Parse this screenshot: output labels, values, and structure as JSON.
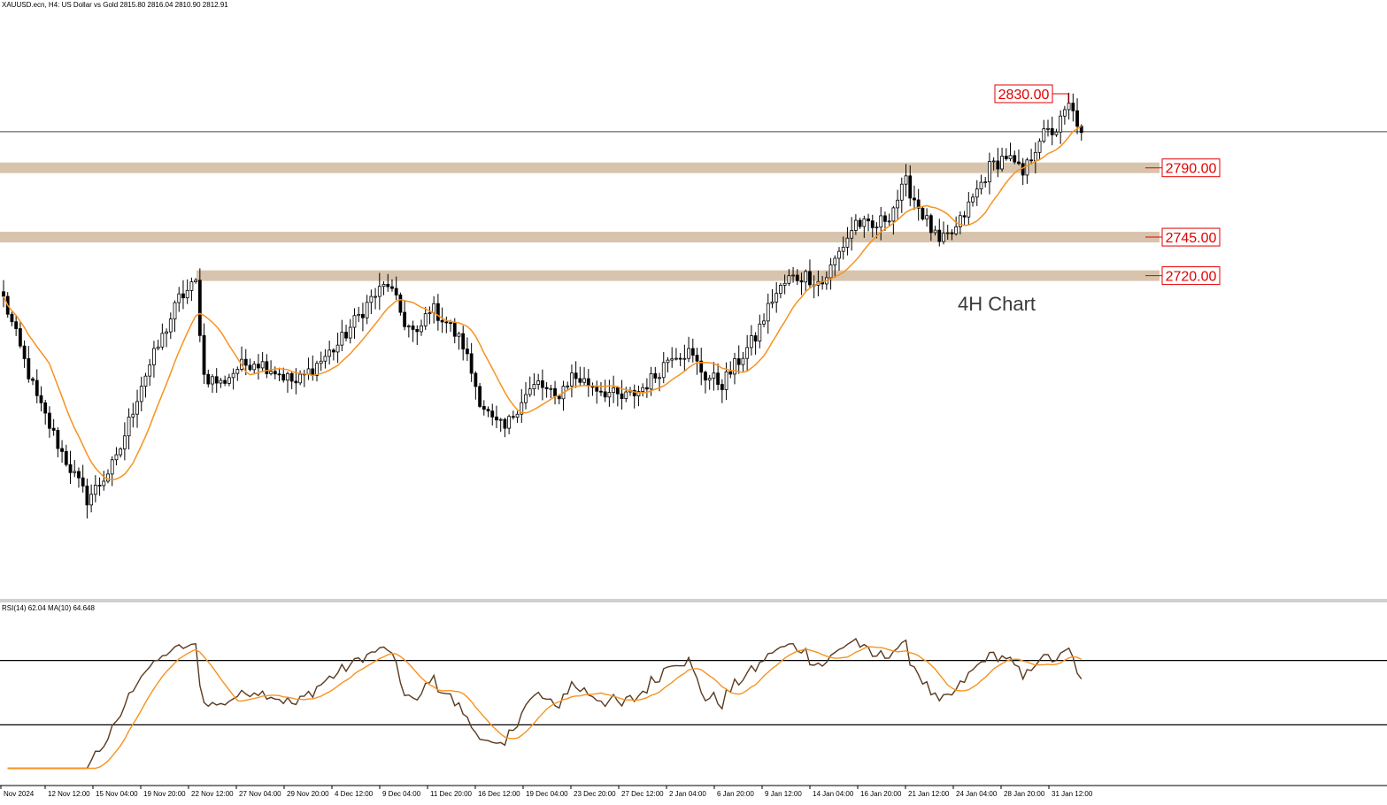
{
  "header": {
    "symbol_text": "XAUUSD.ecn, H4:  US Dollar vs Gold  2815.80 2816.04 2810.90 2812.91"
  },
  "annotation": {
    "text": "4H Chart"
  },
  "colors": {
    "background": "#ffffff",
    "candle": "#000000",
    "ma_line": "#f7931e",
    "zone_fill": "#d8c4ac",
    "label_red": "#e00000",
    "rsi_line": "#5a3a20",
    "rsi_ma_line": "#f7931e",
    "grid_line": "#000000"
  },
  "chart_data": [
    {
      "type": "candlestick",
      "name": "XAUUSD.ecn H4",
      "indicator": "moving average",
      "ylim": [
        2540,
        2880
      ],
      "price_levels": [
        {
          "label": "2830.00",
          "value": 2830,
          "style": "marker"
        },
        {
          "label": "2790.00",
          "value": 2790,
          "style": "zone"
        },
        {
          "label": "2745.00",
          "value": 2745,
          "style": "zone"
        },
        {
          "label": "2720.00",
          "value": 2720,
          "style": "zone"
        }
      ],
      "current_price": 2812.91,
      "x_tick_labels": [
        "Nov 2024",
        "12 Nov 12:00",
        "15 Nov 04:00",
        "19 Nov 20:00",
        "22 Nov 12:00",
        "27 Nov 04:00",
        "29 Nov 20:00",
        "4 Dec 12:00",
        "9 Dec 04:00",
        "11 Dec 20:00",
        "16 Dec 12:00",
        "19 Dec 04:00",
        "23 Dec 20:00",
        "27 Dec 12:00",
        "2 Jan 04:00",
        "6 Jan 20:00",
        "9 Jan 12:00",
        "14 Jan 04:00",
        "16 Jan 20:00",
        "21 Jan 12:00",
        "24 Jan 04:00",
        "28 Jan 20:00",
        "31 Jan 12:00"
      ],
      "price_path": [
        [
          0,
          2705
        ],
        [
          8,
          2640
        ],
        [
          14,
          2605
        ],
        [
          20,
          2575
        ],
        [
          23,
          2585
        ],
        [
          27,
          2600
        ],
        [
          33,
          2650
        ],
        [
          38,
          2680
        ],
        [
          42,
          2705
        ],
        [
          46,
          2715
        ],
        [
          48,
          2655
        ],
        [
          52,
          2650
        ],
        [
          56,
          2660
        ],
        [
          60,
          2665
        ],
        [
          64,
          2660
        ],
        [
          70,
          2650
        ],
        [
          76,
          2665
        ],
        [
          80,
          2675
        ],
        [
          84,
          2690
        ],
        [
          88,
          2705
        ],
        [
          92,
          2715
        ],
        [
          96,
          2690
        ],
        [
          99,
          2680
        ],
        [
          102,
          2700
        ],
        [
          106,
          2690
        ],
        [
          110,
          2675
        ],
        [
          114,
          2640
        ],
        [
          117,
          2625
        ],
        [
          120,
          2620
        ],
        [
          124,
          2640
        ],
        [
          128,
          2650
        ],
        [
          132,
          2640
        ],
        [
          136,
          2655
        ],
        [
          140,
          2650
        ],
        [
          144,
          2645
        ],
        [
          148,
          2640
        ],
        [
          152,
          2645
        ],
        [
          156,
          2655
        ],
        [
          160,
          2670
        ],
        [
          164,
          2670
        ],
        [
          168,
          2655
        ],
        [
          172,
          2650
        ],
        [
          176,
          2665
        ],
        [
          180,
          2680
        ],
        [
          184,
          2705
        ],
        [
          188,
          2718
        ],
        [
          192,
          2720
        ],
        [
          196,
          2715
        ],
        [
          200,
          2735
        ],
        [
          204,
          2755
        ],
        [
          208,
          2750
        ],
        [
          212,
          2760
        ],
        [
          216,
          2780
        ],
        [
          220,
          2760
        ],
        [
          224,
          2740
        ],
        [
          228,
          2750
        ],
        [
          232,
          2770
        ],
        [
          236,
          2790
        ],
        [
          240,
          2798
        ],
        [
          244,
          2785
        ],
        [
          248,
          2810
        ],
        [
          252,
          2815
        ],
        [
          255,
          2830
        ],
        [
          258,
          2815
        ]
      ]
    },
    {
      "type": "line",
      "name": "RSI(14)",
      "title": "RSI(14) 62.04 MA(10) 64.648",
      "ylim": [
        0,
        100
      ],
      "levels": [
        70,
        30
      ],
      "rsi_value": 62.04,
      "ma_value": 64.648
    }
  ]
}
